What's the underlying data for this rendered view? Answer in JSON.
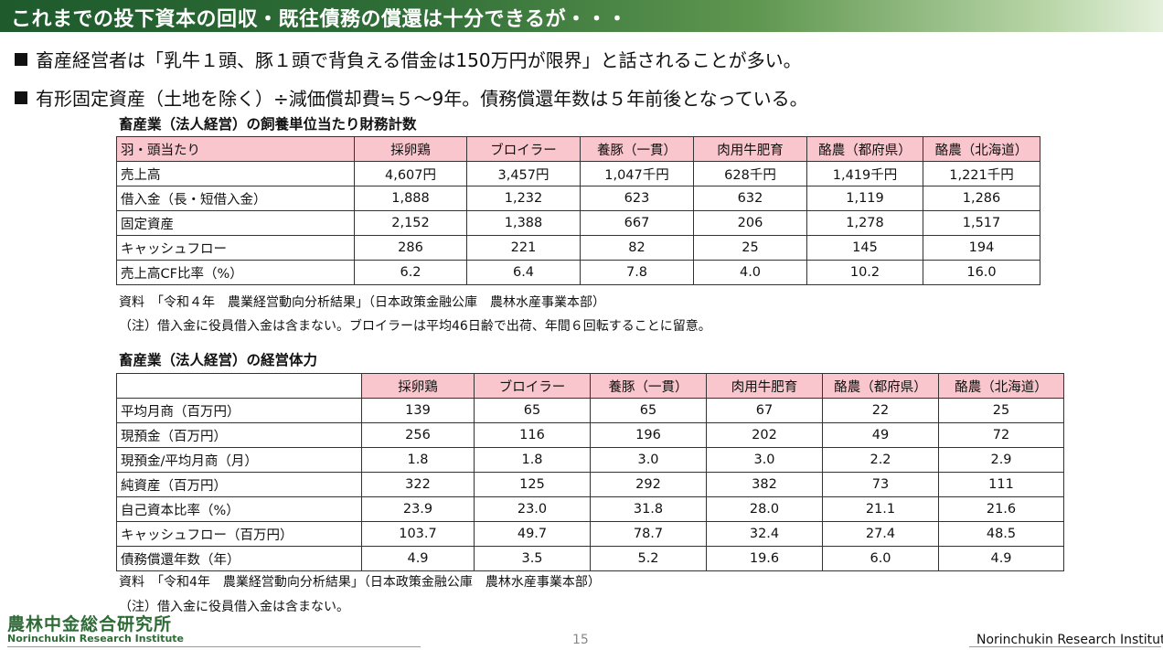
{
  "title": "これまでの投下資本の回収・既往債務の償還は十分できるが・・・",
  "bullets": [
    "畜産経営者は「乳牛１頭、豚１頭で背負える借金は150万円が限界」と話されることが多い。",
    "有形固定資産（土地を除く）÷減価償却費≒５～9年。債務償還年数は５年前後となっている。"
  ],
  "table1": {
    "caption": "畜産業（法人経営）の飼養単位当たり財務計数",
    "header": [
      "羽・頭当たり",
      "採卵鶏",
      "ブロイラー",
      "養豚（一貫）",
      "肉用牛肥育",
      "酪農（都府県）",
      "酪農（北海道）"
    ],
    "rows": [
      [
        "売上高",
        "4,607円",
        "3,457円",
        "1,047千円",
        "628千円",
        "1,419千円",
        "1,221千円"
      ],
      [
        "借入金（長・短借入金）",
        "1,888",
        "1,232",
        "623",
        "632",
        "1,119",
        "1,286"
      ],
      [
        "固定資産",
        "2,152",
        "1,388",
        "667",
        "206",
        "1,278",
        "1,517"
      ],
      [
        "キャッシュフロー",
        "286",
        "221",
        "82",
        "25",
        "145",
        "194"
      ],
      [
        "売上高CF比率（%）",
        "6.2",
        "6.4",
        "7.8",
        "4.0",
        "10.2",
        "16.0"
      ]
    ],
    "source": "資料　「令和４年　農業経営動向分析結果」（日本政策金融公庫　農林水産事業本部）",
    "note": "（注）借入金に役員借入金は含まない。ブロイラーは平均46日齢で出荷、年間６回転することに留意。"
  },
  "table2": {
    "caption": "畜産業（法人経営）の経営体力",
    "header": [
      "",
      "採卵鶏",
      "ブロイラー",
      "養豚（一貫）",
      "肉用牛肥育",
      "酪農（都府県）",
      "酪農（北海道）"
    ],
    "rows": [
      [
        "平均月商（百万円）",
        "139",
        "65",
        "65",
        "67",
        "22",
        "25"
      ],
      [
        "現預金（百万円）",
        "256",
        "116",
        "196",
        "202",
        "49",
        "72"
      ],
      [
        "現預金/平均月商（月）",
        "1.8",
        "1.8",
        "3.0",
        "3.0",
        "2.2",
        "2.9"
      ],
      [
        "純資産（百万円）",
        "322",
        "125",
        "292",
        "382",
        "73",
        "111"
      ],
      [
        "自己資本比率（%）",
        "23.9",
        "23.0",
        "31.8",
        "28.0",
        "21.1",
        "21.6"
      ],
      [
        "キャッシュフロー（百万円）",
        "103.7",
        "49.7",
        "78.7",
        "32.4",
        "27.4",
        "48.5"
      ],
      [
        "債務償還年数（年）",
        "4.9",
        "3.5",
        "5.2",
        "19.6",
        "6.0",
        "4.9"
      ]
    ],
    "source": "資料　「令和4年　農業経営動向分析結果」（日本政策金融公庫　農林水産事業本部）",
    "note": "（注）借入金に役員借入金は含まない。"
  },
  "footer": {
    "logo_jp": "農林中金総合研究所",
    "logo_en": "Norinchukin Research Institute",
    "page": "15",
    "institute": "Norinchukin Research Institute"
  },
  "colors": {
    "title_bar_dark": "#1e5a2c",
    "header_fill": "#f8c6cc",
    "logo_green": "#2e6b36"
  }
}
